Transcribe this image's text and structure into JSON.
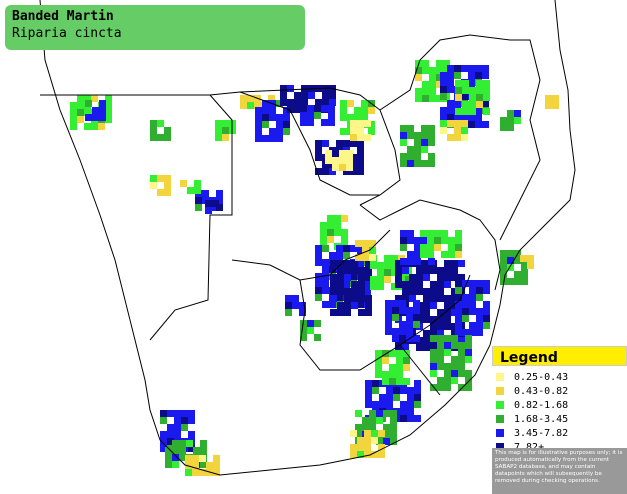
{
  "header": {
    "title": "Banded Martin",
    "subtitle": "Riparia cincta"
  },
  "legend": {
    "title": "Legend",
    "items": [
      {
        "label": "0.25-0.43",
        "color": "#fff68a"
      },
      {
        "label": "0.43-0.82",
        "color": "#f2d53c"
      },
      {
        "label": "0.82-1.68",
        "color": "#33ee33"
      },
      {
        "label": "1.68-3.45",
        "color": "#2fae2f"
      },
      {
        "label": "3.45-7.82",
        "color": "#1a1aee"
      },
      {
        "label": "7.82+",
        "color": "#0c0c8a"
      }
    ],
    "disclaimer": "This map is for illustrative purposes only; it is produced automatically from the current SABAP2 database, and may contain datapoints which will subsequently be removed during checking operations."
  }
}
